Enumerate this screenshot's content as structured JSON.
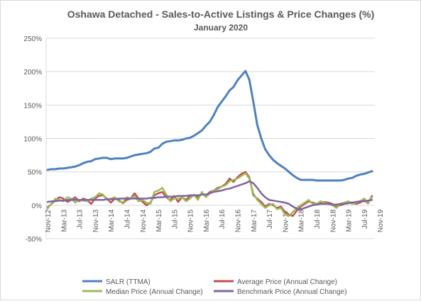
{
  "chart_data": {
    "type": "line",
    "title": "Oshawa Detached - Sales-to-Active Listings & Price Changes (%)",
    "subtitle": "January 2020",
    "xlabel": "",
    "ylabel": "",
    "ylim": [
      -50,
      250
    ],
    "y_ticks": [
      "250%",
      "200%",
      "150%",
      "100%",
      "50%",
      "0%",
      "-50%"
    ],
    "y_tick_values": [
      250,
      200,
      150,
      100,
      50,
      0,
      -50
    ],
    "grid": true,
    "legend_position": "bottom",
    "x_tick_labels": [
      "Nov-12",
      "Mar-13",
      "Jul-13",
      "Nov-13",
      "Mar-14",
      "Jul-14",
      "Nov-14",
      "Mar-15",
      "Jul-15",
      "Nov-15",
      "Mar-16",
      "Jul-16",
      "Nov-16",
      "Mar-17",
      "Jul-17",
      "Nov-17",
      "Mar-18",
      "Jul-18",
      "Nov-18",
      "Mar-19",
      "Jul-19",
      "Nov-19"
    ],
    "x_start": "Nov-12",
    "x_end": "Jan-20",
    "series": [
      {
        "name": "SALR (TTMA)",
        "color": "#4f81bd",
        "values": [
          53,
          54,
          54,
          55,
          55,
          56,
          57,
          58,
          60,
          63,
          65,
          66,
          69,
          70,
          71,
          71,
          69,
          70,
          70,
          70,
          71,
          73,
          75,
          76,
          77,
          78,
          80,
          85,
          86,
          92,
          95,
          96,
          97,
          97,
          98,
          100,
          101,
          104,
          108,
          112,
          119,
          125,
          135,
          147,
          155,
          163,
          172,
          177,
          187,
          194,
          201,
          188,
          155,
          120,
          100,
          84,
          75,
          68,
          63,
          59,
          55,
          50,
          45,
          41,
          38,
          38,
          38,
          38,
          37,
          37,
          37,
          37,
          37,
          37,
          37,
          38,
          40,
          41,
          44,
          46,
          47,
          49,
          51
        ],
        "line_width": 3
      },
      {
        "name": "Average Price (Annual Change)",
        "color": "#c0504d",
        "values": [
          -3,
          2,
          8,
          12,
          10,
          5,
          8,
          12,
          6,
          10,
          8,
          2,
          10,
          14,
          15,
          10,
          4,
          10,
          8,
          3,
          8,
          10,
          18,
          10,
          5,
          0,
          4,
          15,
          18,
          20,
          12,
          8,
          14,
          5,
          12,
          8,
          14,
          15,
          12,
          18,
          14,
          20,
          22,
          26,
          28,
          32,
          40,
          35,
          42,
          47,
          50,
          42,
          15,
          10,
          5,
          -2,
          2,
          0,
          -4,
          -2,
          -10,
          -14,
          -16,
          -8,
          -2,
          2,
          6,
          4,
          2,
          4,
          5,
          4,
          2,
          -2,
          0,
          2,
          5,
          4,
          2,
          4,
          8,
          3,
          14
        ]
      },
      {
        "name": "Median Price (Annual Change)",
        "color": "#9bbb59",
        "values": [
          -5,
          3,
          10,
          8,
          6,
          12,
          10,
          4,
          8,
          7,
          6,
          10,
          12,
          18,
          16,
          8,
          10,
          12,
          6,
          4,
          12,
          10,
          14,
          6,
          8,
          4,
          2,
          20,
          22,
          26,
          16,
          6,
          10,
          10,
          12,
          6,
          10,
          16,
          8,
          20,
          12,
          18,
          22,
          24,
          28,
          30,
          36,
          38,
          40,
          44,
          48,
          40,
          18,
          8,
          2,
          -4,
          0,
          2,
          -6,
          -4,
          -14,
          -16,
          -10,
          -4,
          0,
          4,
          8,
          2,
          2,
          6,
          4,
          2,
          0,
          -4,
          2,
          4,
          6,
          2,
          4,
          6,
          10,
          4,
          12
        ]
      },
      {
        "name": "Benchmark Price (Annual Change)",
        "color": "#8064a2",
        "values": [
          5,
          6,
          6,
          7,
          7,
          8,
          8,
          8,
          8,
          8,
          8,
          8,
          8,
          8,
          8,
          9,
          9,
          9,
          10,
          10,
          10,
          10,
          10,
          10,
          10,
          10,
          11,
          11,
          12,
          12,
          13,
          13,
          13,
          14,
          14,
          14,
          15,
          15,
          15,
          16,
          16,
          18,
          20,
          21,
          22,
          24,
          25,
          27,
          29,
          31,
          33,
          36,
          33,
          26,
          18,
          12,
          8,
          7,
          6,
          5,
          4,
          2,
          -2,
          -5,
          -6,
          -4,
          -2,
          0,
          1,
          2,
          2,
          2,
          1,
          1,
          2,
          2,
          3,
          4,
          5,
          6,
          6,
          7,
          8
        ]
      }
    ]
  }
}
